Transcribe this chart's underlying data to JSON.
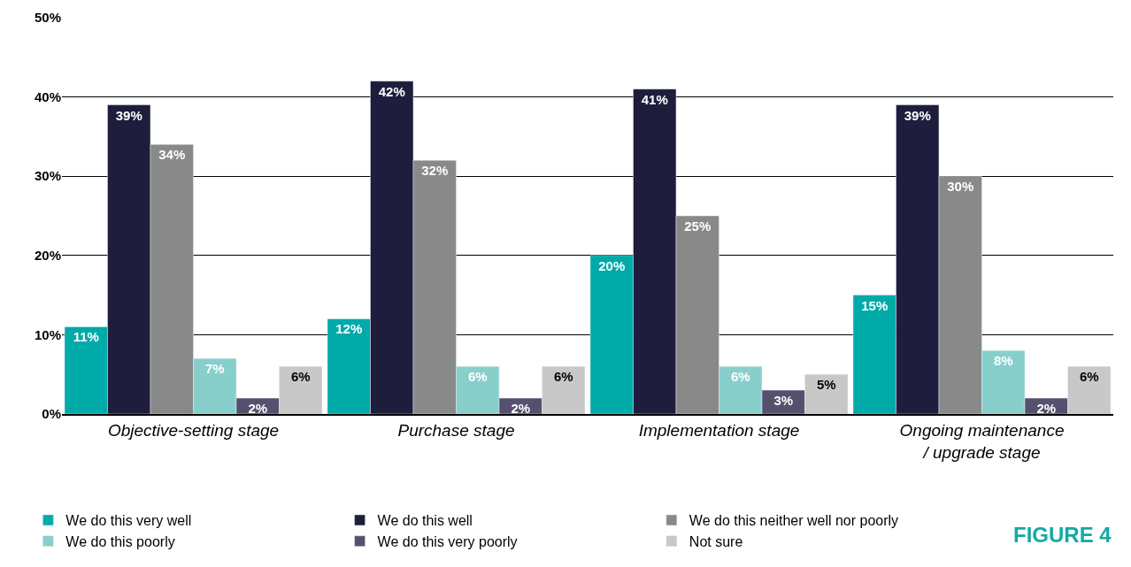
{
  "chart_data": {
    "type": "bar",
    "categories": [
      "Objective-setting stage",
      "Purchase stage",
      "Implementation stage",
      "Ongoing maintenance\n/ upgrade stage"
    ],
    "series": [
      {
        "name": "We do this very well",
        "color": "#00aaa9",
        "values": [
          11,
          12,
          20,
          15
        ],
        "value_labels": [
          "11%",
          "12%",
          "20%",
          "15%"
        ]
      },
      {
        "name": "We do this well",
        "color": "#1f1d3d",
        "values": [
          39,
          42,
          41,
          39
        ],
        "value_labels": [
          "39%",
          "42%",
          "41%",
          "39%"
        ]
      },
      {
        "name": "We do this neither well nor poorly",
        "color": "#898989",
        "values": [
          34,
          32,
          25,
          30
        ],
        "value_labels": [
          "34%",
          "32%",
          "25%",
          "30%"
        ]
      },
      {
        "name": "We do this poorly",
        "color": "#88cfcc",
        "values": [
          7,
          6,
          6,
          8
        ],
        "value_labels": [
          "7%",
          "6%",
          "6%",
          "8%"
        ]
      },
      {
        "name": "We do this very poorly",
        "color": "#56506e",
        "values": [
          2,
          2,
          3,
          2
        ],
        "value_labels": [
          "2%",
          "2%",
          "3%",
          "2%"
        ]
      },
      {
        "name": "Not sure",
        "color": "#c8c8c8",
        "values": [
          6,
          6,
          5,
          6
        ],
        "value_labels": [
          "6%",
          "6%",
          "5%",
          "6%"
        ]
      }
    ],
    "ylim": [
      0,
      50
    ],
    "yticks": [
      {
        "value": 0,
        "label": "0%"
      },
      {
        "value": 10,
        "label": "10%"
      },
      {
        "value": 20,
        "label": "20%"
      },
      {
        "value": 30,
        "label": "30%"
      },
      {
        "value": 40,
        "label": "40%"
      },
      {
        "value": 50,
        "label": "50%"
      }
    ],
    "grid": "y",
    "legend": "bottom left",
    "annotations": [
      "FIGURE 4"
    ]
  }
}
